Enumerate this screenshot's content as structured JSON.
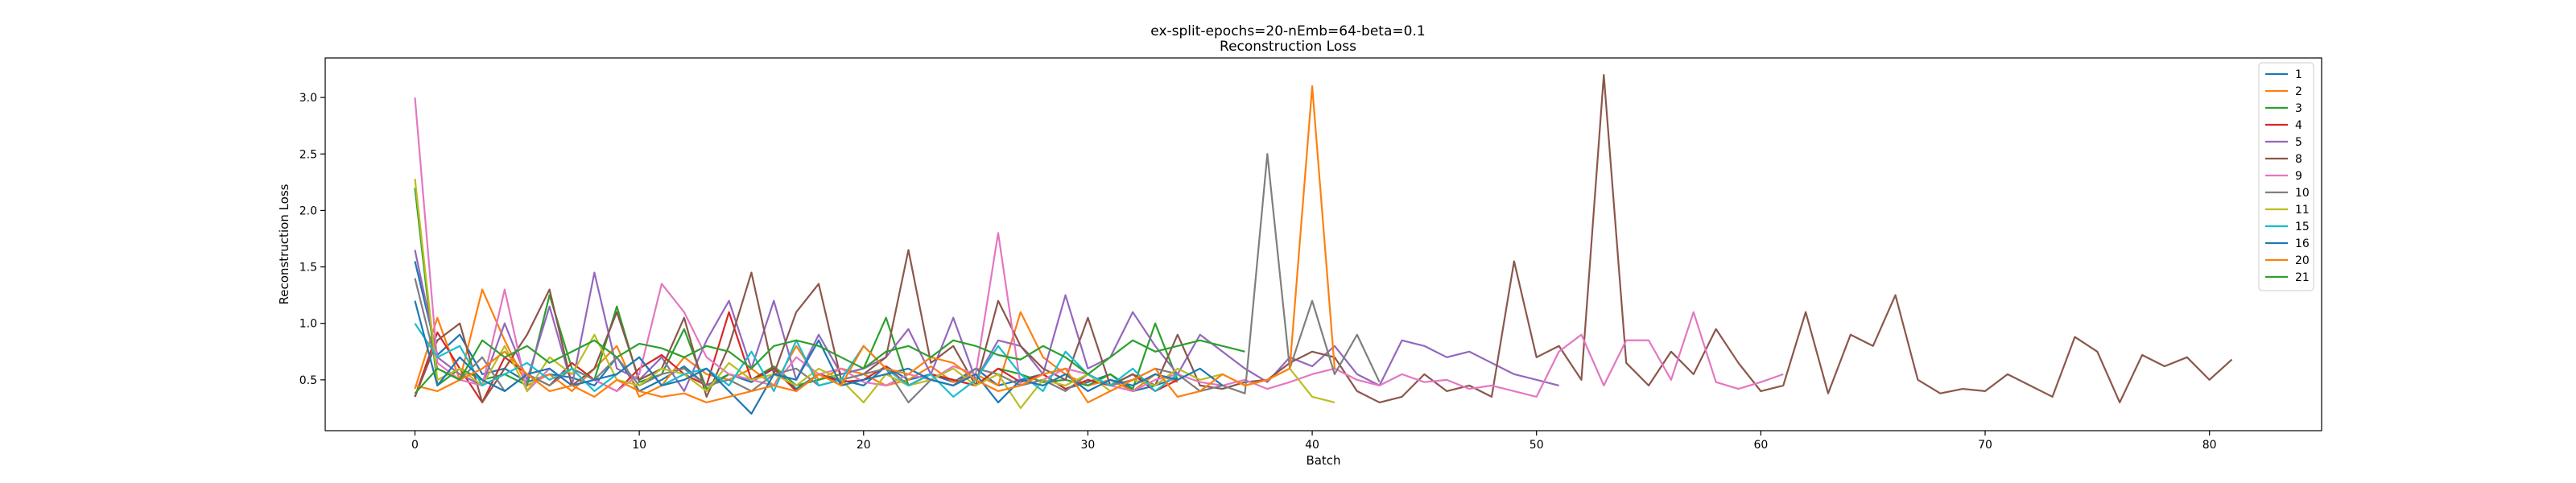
{
  "chart_data": {
    "type": "line",
    "title": "ex-split-epochs=20-nEmb=64-beta=0.1",
    "subtitle": "Reconstruction Loss",
    "xlabel": "Batch",
    "ylabel": "Reconstruction Loss",
    "xlim": [
      -4,
      85
    ],
    "ylim": [
      0.05,
      3.35
    ],
    "xticks": [
      0,
      10,
      20,
      30,
      40,
      50,
      60,
      70,
      80
    ],
    "yticks": [
      0.5,
      1.0,
      1.5,
      2.0,
      2.5,
      3.0
    ],
    "ytick_labels": [
      "0.5",
      "1.0",
      "1.5",
      "2.0",
      "2.5",
      "3.0"
    ],
    "grid": false,
    "legend_position": "top-right",
    "series": [
      {
        "name": "1",
        "color": "#1f77b4",
        "values": [
          1.55,
          0.72,
          0.9,
          0.55,
          0.6,
          0.48,
          0.55,
          0.52,
          0.45,
          0.7,
          0.4,
          0.5,
          0.62,
          0.45,
          0.55,
          0.48,
          0.6,
          0.42,
          0.55,
          0.5,
          0.45,
          0.62,
          0.5,
          0.55,
          0.48,
          0.6,
          0.45,
          0.5,
          0.55,
          0.42,
          0.48,
          0.55,
          0.4,
          0.45,
          0.52
        ]
      },
      {
        "name": "2",
        "color": "#ff7f0e",
        "values": [
          0.42,
          1.05,
          0.5,
          1.3,
          0.85,
          0.45,
          0.55,
          0.4,
          0.6,
          0.8,
          0.35,
          0.45,
          0.7,
          0.55,
          0.5,
          0.6,
          0.45,
          0.8,
          0.5,
          0.6,
          0.55,
          0.45,
          0.5,
          0.62,
          0.48,
          0.55,
          0.45,
          1.1,
          0.7,
          0.55,
          0.45,
          0.5,
          0.4,
          0.55,
          0.48
        ]
      },
      {
        "name": "3",
        "color": "#2ca02c",
        "values": [
          2.2,
          0.45,
          0.6,
          0.5,
          0.55,
          0.45,
          1.25,
          0.6,
          0.5,
          1.15,
          0.48,
          0.55,
          0.95,
          0.42,
          0.55,
          0.5,
          0.62,
          0.45,
          0.5,
          0.55,
          0.6,
          1.05,
          0.45,
          0.55,
          0.5,
          0.45,
          0.6,
          0.55,
          0.48,
          0.5,
          0.45,
          0.55,
          0.42,
          1.0,
          0.5
        ]
      },
      {
        "name": "4",
        "color": "#d62728",
        "values": [
          0.35,
          0.92,
          0.6,
          0.3,
          0.7,
          0.55,
          0.45,
          0.65,
          0.5,
          0.4,
          0.6,
          0.72,
          0.55,
          0.45,
          1.1,
          0.5,
          0.6,
          0.4,
          0.55,
          0.48,
          0.5,
          0.62,
          0.45,
          0.55,
          0.5,
          0.45,
          0.6,
          0.48,
          0.55,
          0.42,
          0.5,
          0.45,
          0.55,
          0.4,
          0.5
        ]
      },
      {
        "name": "5",
        "color": "#9467bd",
        "values": [
          1.65,
          0.7,
          0.55,
          0.45,
          1.0,
          0.5,
          1.15,
          0.45,
          1.45,
          0.6,
          0.5,
          0.7,
          0.4,
          0.85,
          1.2,
          0.6,
          1.2,
          0.5,
          0.9,
          0.55,
          0.6,
          0.7,
          0.95,
          0.55,
          1.05,
          0.5,
          0.85,
          0.8,
          0.55,
          1.25,
          0.6,
          0.7,
          1.1,
          0.8,
          0.55,
          0.9,
          0.75,
          0.6,
          0.48,
          0.7,
          0.62,
          0.8,
          0.55,
          0.45,
          0.85,
          0.8,
          0.7,
          0.75,
          0.65,
          0.55,
          0.5,
          0.45
        ]
      },
      {
        "name": "8",
        "color": "#8c564b",
        "values": [
          0.35,
          0.85,
          1.0,
          0.3,
          0.6,
          0.9,
          1.3,
          0.45,
          0.6,
          1.1,
          0.5,
          0.6,
          1.05,
          0.35,
          0.8,
          1.45,
          0.55,
          1.1,
          1.35,
          0.5,
          0.55,
          0.7,
          1.65,
          0.65,
          0.8,
          0.45,
          1.2,
          0.8,
          0.6,
          0.5,
          1.05,
          0.45,
          0.55,
          0.45,
          0.9,
          0.45,
          0.42,
          0.48,
          0.5,
          0.65,
          0.75,
          0.7,
          0.4,
          0.3,
          0.35,
          0.55,
          0.4,
          0.45,
          0.35,
          1.55,
          0.7,
          0.8,
          0.5,
          3.2,
          0.65,
          0.45,
          0.75,
          0.55,
          0.95,
          0.65,
          0.4,
          0.45,
          1.1,
          0.38,
          0.9,
          0.8,
          1.25,
          0.5,
          0.38,
          0.42,
          0.4,
          0.55,
          0.45,
          0.35,
          0.88,
          0.75,
          0.3,
          0.72,
          0.62,
          0.7,
          0.5,
          0.68
        ]
      },
      {
        "name": "9",
        "color": "#e377c2",
        "values": [
          3.0,
          0.65,
          0.5,
          0.45,
          1.3,
          0.4,
          0.6,
          0.45,
          0.5,
          0.4,
          0.55,
          1.35,
          1.1,
          0.7,
          0.55,
          0.5,
          0.45,
          0.7,
          0.55,
          0.6,
          0.48,
          0.45,
          0.55,
          0.5,
          0.62,
          0.55,
          1.8,
          0.45,
          0.5,
          0.6,
          0.55,
          0.45,
          0.4,
          0.5,
          0.55,
          0.48,
          0.45,
          0.5,
          0.42,
          0.48,
          0.55,
          0.6,
          0.5,
          0.45,
          0.55,
          0.48,
          0.5,
          0.42,
          0.45,
          0.4,
          0.35,
          0.75,
          0.9,
          0.45,
          0.85,
          0.85,
          0.5,
          1.1,
          0.48,
          0.42,
          0.48,
          0.55
        ]
      },
      {
        "name": "10",
        "color": "#7f7f7f",
        "values": [
          1.4,
          0.6,
          0.5,
          0.7,
          0.4,
          0.55,
          0.45,
          0.6,
          0.5,
          0.7,
          0.45,
          0.55,
          0.6,
          0.45,
          0.5,
          0.4,
          0.55,
          0.6,
          0.45,
          0.5,
          0.55,
          0.6,
          0.3,
          0.5,
          0.45,
          0.6,
          0.55,
          0.45,
          0.5,
          0.4,
          0.55,
          0.45,
          0.5,
          0.6,
          0.55,
          0.4,
          0.45,
          0.38,
          2.5,
          0.6,
          1.2,
          0.55,
          0.9,
          0.48
        ]
      },
      {
        "name": "11",
        "color": "#bcbd22",
        "values": [
          2.28,
          0.5,
          0.6,
          0.45,
          0.8,
          0.4,
          0.7,
          0.55,
          0.9,
          0.5,
          0.45,
          0.6,
          0.55,
          0.4,
          0.65,
          0.5,
          0.55,
          0.45,
          0.6,
          0.5,
          0.3,
          0.55,
          0.45,
          0.5,
          0.6,
          0.45,
          0.55,
          0.25,
          0.5,
          0.45,
          0.55,
          0.4,
          0.5,
          0.45,
          0.6,
          0.5,
          0.55,
          0.45,
          0.5,
          0.6,
          0.35,
          0.3
        ]
      },
      {
        "name": "15",
        "color": "#17becf",
        "values": [
          1.0,
          0.7,
          0.8,
          0.45,
          0.55,
          0.65,
          0.5,
          0.6,
          0.4,
          0.55,
          0.7,
          0.45,
          0.55,
          0.6,
          0.45,
          0.75,
          0.4,
          0.85,
          0.45,
          0.5,
          0.8,
          0.6,
          0.45,
          0.55,
          0.35,
          0.5,
          0.8,
          0.55,
          0.4,
          0.75,
          0.55,
          0.45,
          0.6,
          0.4,
          0.55
        ]
      },
      {
        "name": "16",
        "color": "#1f77b4",
        "values": [
          1.2,
          0.45,
          0.7,
          0.5,
          0.4,
          0.55,
          0.6,
          0.45,
          0.5,
          0.55,
          0.7,
          0.45,
          0.5,
          0.6,
          0.4,
          0.2,
          0.55,
          0.5,
          0.85,
          0.45,
          0.5,
          0.55,
          0.6,
          0.5,
          0.45,
          0.55,
          0.3,
          0.5,
          0.45,
          0.55,
          0.4,
          0.5,
          0.45,
          0.55,
          0.5,
          0.6,
          0.45
        ]
      },
      {
        "name": "20",
        "color": "#ff7f0e",
        "values": [
          0.45,
          0.4,
          0.5,
          0.6,
          0.75,
          0.55,
          0.4,
          0.45,
          0.35,
          0.5,
          0.4,
          0.35,
          0.38,
          0.3,
          0.35,
          0.4,
          0.45,
          0.4,
          0.55,
          0.45,
          0.8,
          0.6,
          0.55,
          0.7,
          0.65,
          0.5,
          0.4,
          0.45,
          0.55,
          0.6,
          0.3,
          0.4,
          0.5,
          0.6,
          0.35,
          0.4,
          0.55,
          0.45,
          0.5,
          0.6,
          3.1,
          0.6
        ]
      },
      {
        "name": "21",
        "color": "#2ca02c",
        "values": [
          0.38,
          0.6,
          0.5,
          0.85,
          0.7,
          0.8,
          0.65,
          0.75,
          0.85,
          0.7,
          0.82,
          0.78,
          0.7,
          0.8,
          0.75,
          0.6,
          0.8,
          0.85,
          0.8,
          0.7,
          0.6,
          0.75,
          0.8,
          0.7,
          0.85,
          0.8,
          0.72,
          0.68,
          0.8,
          0.7,
          0.55,
          0.7,
          0.85,
          0.75,
          0.8,
          0.85,
          0.8,
          0.75
        ]
      }
    ]
  }
}
